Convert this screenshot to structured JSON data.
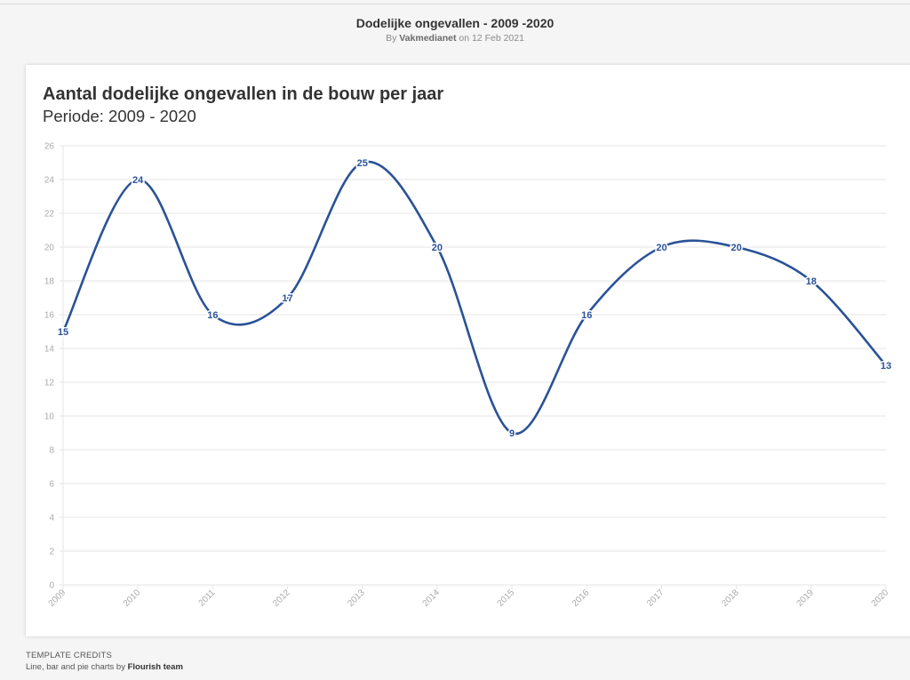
{
  "header": {
    "title": "Dodelijke ongevallen - 2009 -2020",
    "byline_prefix": "By",
    "author": "Vakmedianet",
    "byline_suffix": "on 12 Feb 2021"
  },
  "credits": {
    "heading": "TEMPLATE CREDITS",
    "text": "Line, bar and pie charts by",
    "team": "Flourish team"
  },
  "colors": {
    "line": "#2a5298",
    "grid": "#e6e6e6",
    "tick_text": "#aaaaaa"
  },
  "chart_data": {
    "type": "line",
    "title": "Aantal dodelijke ongevallen in de bouw per jaar",
    "subtitle": "Periode: 2009 - 2020",
    "x": [
      "2009",
      "2010",
      "2011",
      "2012",
      "2013",
      "2014",
      "2015",
      "2016",
      "2017",
      "2018",
      "2019",
      "2020"
    ],
    "series": [
      {
        "values": [
          15,
          24,
          16,
          17,
          25,
          20,
          9,
          16,
          20,
          20,
          18,
          13
        ]
      }
    ],
    "ylim": [
      0,
      26
    ],
    "yticks": [
      0,
      2,
      4,
      6,
      8,
      10,
      12,
      14,
      16,
      18,
      20,
      22,
      24,
      26
    ],
    "grid": true,
    "curve": "smooth",
    "data_labels": true,
    "xtick_rotation": "diagonal"
  }
}
